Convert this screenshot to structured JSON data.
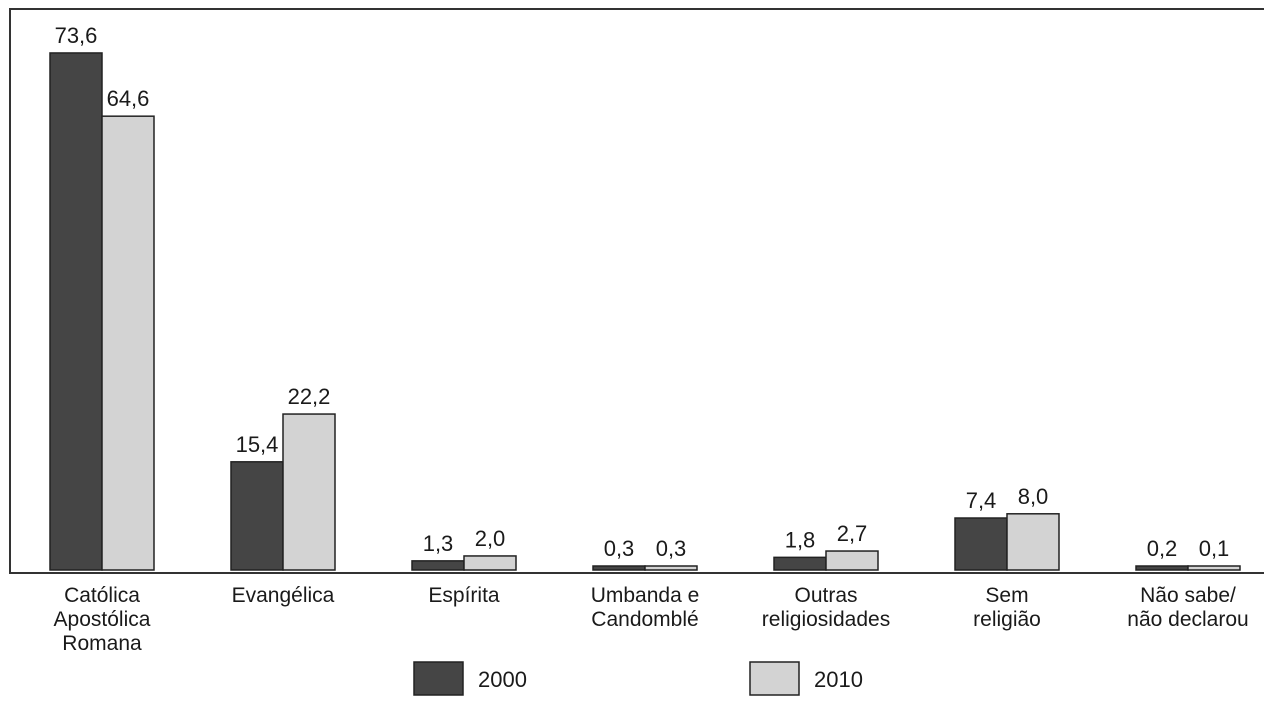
{
  "chart_data": {
    "type": "bar",
    "categories": [
      [
        "Católica",
        "Apostólica",
        "Romana"
      ],
      [
        "Evangélica"
      ],
      [
        "Espírita"
      ],
      [
        "Umbanda e",
        "Candomblé"
      ],
      [
        "Outras",
        "religiosidades"
      ],
      [
        "Sem",
        "religião"
      ],
      [
        "Não sabe/",
        "não declarou"
      ]
    ],
    "series": [
      {
        "name": "2000",
        "color": "#454545",
        "values": [
          73.6,
          15.4,
          1.3,
          0.3,
          1.8,
          7.4,
          0.2
        ],
        "labels": [
          "73,6",
          "15,4",
          "1,3",
          "0,3",
          "1,8",
          "7,4",
          "0,2"
        ]
      },
      {
        "name": "2010",
        "color": "#d3d3d3",
        "values": [
          64.6,
          22.2,
          2.0,
          0.3,
          2.7,
          8.0,
          0.1
        ],
        "labels": [
          "64,6",
          "22,2",
          "2,0",
          "0,3",
          "2,7",
          "8,0",
          "0,1"
        ]
      }
    ],
    "ylim": [
      0,
      80
    ],
    "grid": false,
    "legend_position": "bottom",
    "title": "",
    "xlabel": "",
    "ylabel": ""
  }
}
